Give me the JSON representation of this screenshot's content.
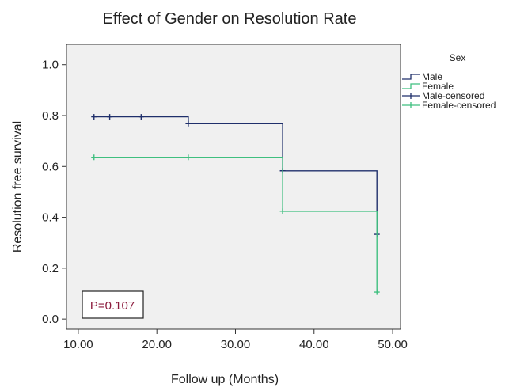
{
  "chart_data": {
    "type": "line",
    "subtype": "kaplan-meier step",
    "title": "Effect of Gender on Resolution Rate",
    "xlabel": "Follow up (Months)",
    "ylabel": "Resolution free survival",
    "xlim": [
      8.5,
      51.0
    ],
    "ylim": [
      -0.04,
      1.08
    ],
    "x_ticks": [
      "10.00",
      "20.00",
      "30.00",
      "40.00",
      "50.00"
    ],
    "x_tick_values": [
      10,
      20,
      30,
      40,
      50
    ],
    "y_ticks": [
      "0.0",
      "0.2",
      "0.4",
      "0.6",
      "0.8",
      "1.0"
    ],
    "y_tick_values": [
      0.0,
      0.2,
      0.4,
      0.6,
      0.8,
      1.0
    ],
    "grid": false,
    "plot_background": "#f0f0f0",
    "legend": {
      "title": "Sex",
      "placement": "right",
      "entries": [
        "Male",
        "Female",
        "Male-censored",
        "Female-censored"
      ]
    },
    "annotation": {
      "text": "P=0.107",
      "color": "#8b1a3c"
    },
    "series": [
      {
        "name": "Male",
        "color": "#1f2f6b",
        "steps": [
          [
            12,
            0.795
          ],
          [
            24,
            0.795
          ],
          [
            24,
            0.768
          ],
          [
            36,
            0.768
          ],
          [
            36,
            0.583
          ],
          [
            48,
            0.583
          ],
          [
            48,
            0.333
          ]
        ],
        "censored": [
          [
            12,
            0.795
          ],
          [
            14,
            0.795
          ],
          [
            18,
            0.795
          ],
          [
            24,
            0.768
          ],
          [
            36,
            0.583
          ],
          [
            48,
            0.333
          ]
        ]
      },
      {
        "name": "Female",
        "color": "#3fbf7f",
        "steps": [
          [
            12,
            0.636
          ],
          [
            36,
            0.636
          ],
          [
            36,
            0.424
          ],
          [
            48,
            0.424
          ],
          [
            48,
            0.106
          ]
        ],
        "censored": [
          [
            12,
            0.636
          ],
          [
            24,
            0.636
          ],
          [
            36,
            0.424
          ],
          [
            48,
            0.106
          ]
        ]
      }
    ]
  }
}
